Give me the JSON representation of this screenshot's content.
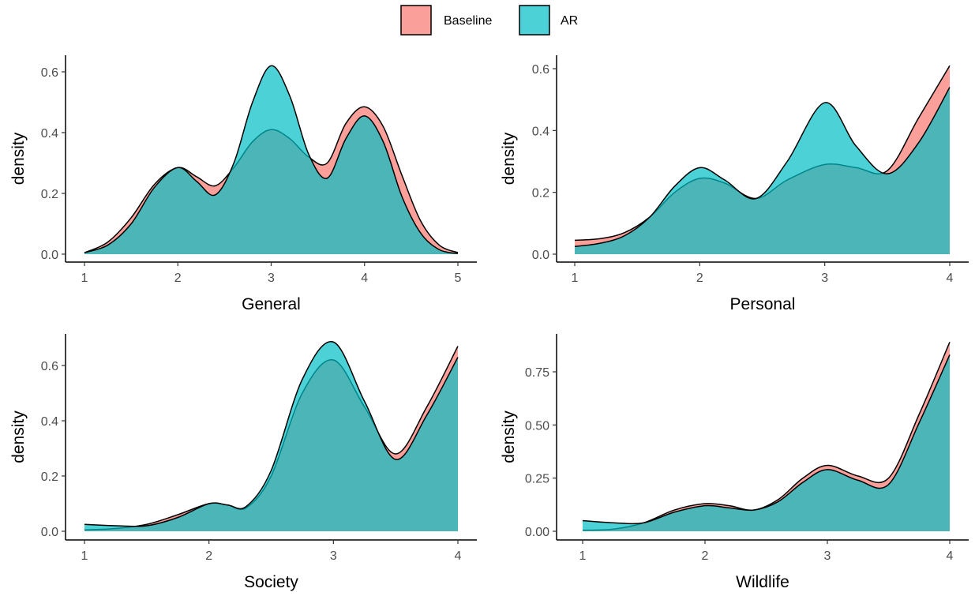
{
  "legend": {
    "items": [
      {
        "label": "Baseline",
        "color": "#F8766D"
      },
      {
        "label": "AR",
        "color": "#00BFC4"
      }
    ]
  },
  "chart_data": [
    {
      "type": "area",
      "xlabel": "General",
      "ylabel": "density",
      "xlim": [
        1,
        5
      ],
      "ylim": [
        0,
        0.6
      ],
      "xticks": [
        1,
        2,
        3,
        4,
        5
      ],
      "yticks": [
        0,
        0.2,
        0.4,
        0.6
      ],
      "ytick_labels": [
        "0.0",
        "0.2",
        "0.4",
        "0.6"
      ],
      "grid": false,
      "series": [
        {
          "name": "Baseline",
          "color": "#F8766D",
          "x": [
            1.0,
            1.25,
            1.5,
            1.75,
            2.0,
            2.2,
            2.4,
            2.6,
            2.8,
            3.0,
            3.2,
            3.4,
            3.6,
            3.8,
            4.0,
            4.2,
            4.4,
            4.6,
            4.8,
            5.0
          ],
          "y": [
            0.005,
            0.04,
            0.12,
            0.23,
            0.285,
            0.255,
            0.225,
            0.285,
            0.37,
            0.41,
            0.38,
            0.32,
            0.3,
            0.43,
            0.485,
            0.42,
            0.26,
            0.11,
            0.03,
            0.005
          ]
        },
        {
          "name": "AR",
          "color": "#00BFC4",
          "x": [
            1.0,
            1.25,
            1.5,
            1.75,
            2.0,
            2.2,
            2.4,
            2.6,
            2.8,
            3.0,
            3.2,
            3.4,
            3.6,
            3.8,
            4.0,
            4.2,
            4.4,
            4.6,
            4.8,
            5.0
          ],
          "y": [
            0.005,
            0.03,
            0.1,
            0.22,
            0.285,
            0.24,
            0.195,
            0.3,
            0.5,
            0.62,
            0.52,
            0.33,
            0.25,
            0.38,
            0.455,
            0.37,
            0.19,
            0.07,
            0.015,
            0.002
          ]
        }
      ]
    },
    {
      "type": "area",
      "xlabel": "Personal",
      "ylabel": "density",
      "xlim": [
        1,
        4
      ],
      "ylim": [
        0,
        0.6
      ],
      "xticks": [
        1,
        2,
        3,
        4
      ],
      "yticks": [
        0,
        0.2,
        0.4,
        0.6
      ],
      "ytick_labels": [
        "0.0",
        "0.2",
        "0.4",
        "0.6"
      ],
      "grid": false,
      "series": [
        {
          "name": "Baseline",
          "color": "#F8766D",
          "x": [
            1.0,
            1.2,
            1.4,
            1.6,
            1.8,
            2.0,
            2.2,
            2.45,
            2.7,
            3.0,
            3.25,
            3.5,
            3.75,
            4.0
          ],
          "y": [
            0.045,
            0.05,
            0.07,
            0.12,
            0.2,
            0.245,
            0.23,
            0.18,
            0.24,
            0.29,
            0.28,
            0.27,
            0.44,
            0.61
          ]
        },
        {
          "name": "AR",
          "color": "#00BFC4",
          "x": [
            1.0,
            1.2,
            1.4,
            1.6,
            1.8,
            2.0,
            2.2,
            2.45,
            2.7,
            3.0,
            3.25,
            3.5,
            3.75,
            4.0
          ],
          "y": [
            0.025,
            0.035,
            0.06,
            0.12,
            0.22,
            0.28,
            0.24,
            0.18,
            0.3,
            0.49,
            0.35,
            0.26,
            0.36,
            0.54
          ]
        }
      ]
    },
    {
      "type": "area",
      "xlabel": "Society",
      "ylabel": "density",
      "xlim": [
        1,
        4
      ],
      "ylim": [
        0,
        0.6
      ],
      "xticks": [
        1,
        2,
        3,
        4
      ],
      "yticks": [
        0,
        0.2,
        0.4,
        0.6
      ],
      "ytick_labels": [
        "0.0",
        "0.2",
        "0.4",
        "0.6"
      ],
      "grid": false,
      "series": [
        {
          "name": "Baseline",
          "color": "#F8766D",
          "x": [
            1.0,
            1.25,
            1.5,
            1.75,
            2.0,
            2.15,
            2.3,
            2.5,
            2.75,
            3.0,
            3.25,
            3.5,
            3.75,
            4.0
          ],
          "y": [
            0.005,
            0.01,
            0.025,
            0.06,
            0.1,
            0.095,
            0.085,
            0.2,
            0.5,
            0.62,
            0.45,
            0.28,
            0.45,
            0.67
          ]
        },
        {
          "name": "AR",
          "color": "#00BFC4",
          "x": [
            1.0,
            1.25,
            1.5,
            1.75,
            2.0,
            2.15,
            2.3,
            2.5,
            2.75,
            3.0,
            3.25,
            3.5,
            3.75,
            4.0
          ],
          "y": [
            0.025,
            0.02,
            0.02,
            0.05,
            0.1,
            0.095,
            0.09,
            0.22,
            0.55,
            0.685,
            0.47,
            0.26,
            0.42,
            0.63
          ]
        }
      ]
    },
    {
      "type": "area",
      "xlabel": "Wildlife",
      "ylabel": "density",
      "xlim": [
        1,
        4
      ],
      "ylim": [
        0,
        0.75
      ],
      "xticks": [
        1,
        2,
        3,
        4
      ],
      "yticks": [
        0,
        0.25,
        0.5,
        0.75
      ],
      "ytick_labels": [
        "0.00",
        "0.25",
        "0.50",
        "0.75"
      ],
      "grid": false,
      "series": [
        {
          "name": "Baseline",
          "color": "#F8766D",
          "x": [
            1.0,
            1.25,
            1.5,
            1.75,
            2.0,
            2.2,
            2.4,
            2.6,
            2.8,
            3.0,
            3.25,
            3.5,
            3.75,
            4.0
          ],
          "y": [
            0.005,
            0.01,
            0.04,
            0.1,
            0.13,
            0.12,
            0.1,
            0.15,
            0.25,
            0.31,
            0.26,
            0.25,
            0.55,
            0.89
          ]
        },
        {
          "name": "AR",
          "color": "#00BFC4",
          "x": [
            1.0,
            1.25,
            1.5,
            1.75,
            2.0,
            2.2,
            2.4,
            2.6,
            2.8,
            3.0,
            3.25,
            3.5,
            3.75,
            4.0
          ],
          "y": [
            0.05,
            0.04,
            0.04,
            0.09,
            0.12,
            0.11,
            0.1,
            0.14,
            0.23,
            0.29,
            0.24,
            0.22,
            0.51,
            0.83
          ]
        }
      ]
    }
  ]
}
